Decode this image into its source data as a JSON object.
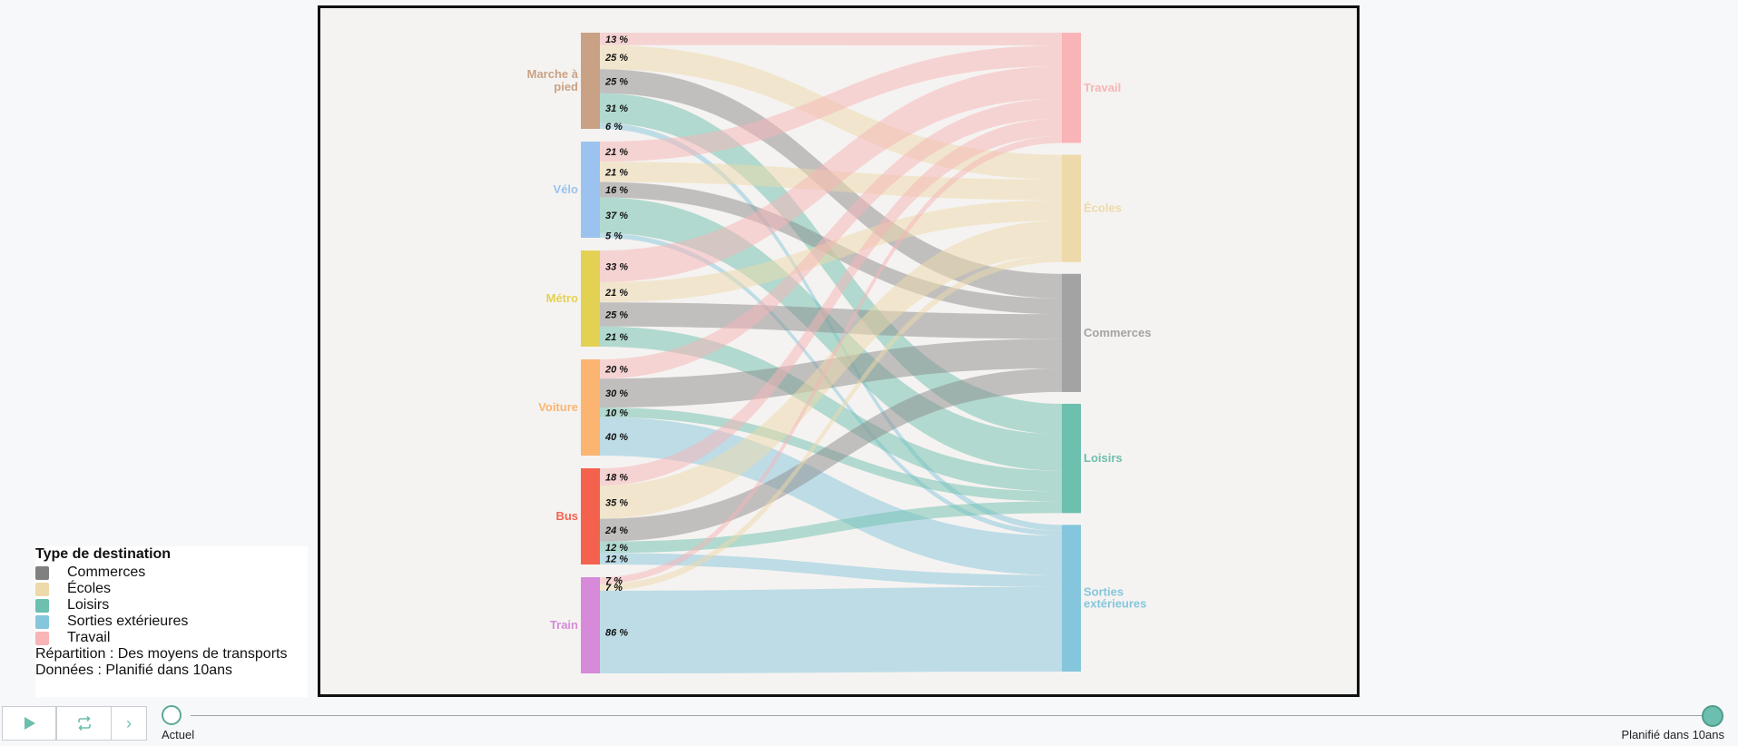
{
  "colors": {
    "Commerces": "#8c8c8c",
    "Écoles": "#edd9a9",
    "Loisirs": "#6dbfae",
    "Sorties extérieures": "#85c6dc",
    "Travail": "#f8b4b6"
  },
  "chart_data": {
    "type": "sankey",
    "sources": [
      {
        "name": "Marche à pied",
        "label_lines": [
          "Marche à",
          "pied"
        ],
        "color": "#c9a285"
      },
      {
        "name": "Vélo",
        "label_lines": [
          "Vélo"
        ],
        "color": "#9cc3ef"
      },
      {
        "name": "Métro",
        "label_lines": [
          "Métro"
        ],
        "color": "#e3d154"
      },
      {
        "name": "Voiture",
        "label_lines": [
          "Voiture"
        ],
        "color": "#fbb570"
      },
      {
        "name": "Bus",
        "label_lines": [
          "Bus"
        ],
        "color": "#f4624e"
      },
      {
        "name": "Train",
        "label_lines": [
          "Train"
        ],
        "color": "#d68ad9"
      }
    ],
    "targets": [
      {
        "name": "Travail",
        "label_lines": [
          "Travail"
        ],
        "color": "#f8b4b6"
      },
      {
        "name": "Écoles",
        "label_lines": [
          "Écoles"
        ],
        "color": "#edd9a9"
      },
      {
        "name": "Commerces",
        "label_lines": [
          "Commerces"
        ],
        "color": "#a3a3a3"
      },
      {
        "name": "Loisirs",
        "label_lines": [
          "Loisirs"
        ],
        "color": "#6dbfae"
      },
      {
        "name": "Sorties extérieures",
        "label_lines": [
          "Sorties",
          "extérieures"
        ],
        "color": "#85c6dc"
      }
    ],
    "flows": [
      {
        "source": "Marche à pied",
        "target": "Travail",
        "value": 13,
        "label": "13 %"
      },
      {
        "source": "Marche à pied",
        "target": "Écoles",
        "value": 25,
        "label": "25 %"
      },
      {
        "source": "Marche à pied",
        "target": "Commerces",
        "value": 25,
        "label": "25 %"
      },
      {
        "source": "Marche à pied",
        "target": "Loisirs",
        "value": 31,
        "label": "31 %"
      },
      {
        "source": "Marche à pied",
        "target": "Sorties extérieures",
        "value": 6,
        "label": "6 %"
      },
      {
        "source": "Vélo",
        "target": "Travail",
        "value": 21,
        "label": "21 %"
      },
      {
        "source": "Vélo",
        "target": "Écoles",
        "value": 21,
        "label": "21 %"
      },
      {
        "source": "Vélo",
        "target": "Commerces",
        "value": 16,
        "label": "16 %"
      },
      {
        "source": "Vélo",
        "target": "Loisirs",
        "value": 37,
        "label": "37 %"
      },
      {
        "source": "Vélo",
        "target": "Sorties extérieures",
        "value": 5,
        "label": "5 %"
      },
      {
        "source": "Métro",
        "target": "Travail",
        "value": 33,
        "label": "33 %"
      },
      {
        "source": "Métro",
        "target": "Écoles",
        "value": 21,
        "label": "21 %"
      },
      {
        "source": "Métro",
        "target": "Commerces",
        "value": 25,
        "label": "25 %"
      },
      {
        "source": "Métro",
        "target": "Loisirs",
        "value": 21,
        "label": "21 %"
      },
      {
        "source": "Voiture",
        "target": "Travail",
        "value": 20,
        "label": "20 %"
      },
      {
        "source": "Voiture",
        "target": "Commerces",
        "value": 30,
        "label": "30 %"
      },
      {
        "source": "Voiture",
        "target": "Loisirs",
        "value": 10,
        "label": "10 %"
      },
      {
        "source": "Voiture",
        "target": "Sorties extérieures",
        "value": 40,
        "label": "40 %"
      },
      {
        "source": "Bus",
        "target": "Travail",
        "value": 18,
        "label": "18 %"
      },
      {
        "source": "Bus",
        "target": "Écoles",
        "value": 35,
        "label": "35 %"
      },
      {
        "source": "Bus",
        "target": "Commerces",
        "value": 24,
        "label": "24 %"
      },
      {
        "source": "Bus",
        "target": "Loisirs",
        "value": 12,
        "label": "12 %"
      },
      {
        "source": "Bus",
        "target": "Sorties extérieures",
        "value": 12,
        "label": "12 %"
      },
      {
        "source": "Train",
        "target": "Travail",
        "value": 7,
        "label": "7 %"
      },
      {
        "source": "Train",
        "target": "Écoles",
        "value": 7,
        "label": "7 %"
      },
      {
        "source": "Train",
        "target": "Sorties extérieures",
        "value": 86,
        "label": "86 %"
      }
    ]
  },
  "legend": {
    "title": "Type de destination",
    "items": [
      {
        "label": "Commerces",
        "color": "#808080"
      },
      {
        "label": "Écoles",
        "color": "#edd9a9"
      },
      {
        "label": "Loisirs",
        "color": "#6dbfae"
      },
      {
        "label": "Sorties extérieures",
        "color": "#85c6dc"
      },
      {
        "label": "Travail",
        "color": "#f8b4b6"
      }
    ],
    "repartition": "Répartition : Des moyens de transports",
    "donnees": "Données : Planifié dans 10ans"
  },
  "timeline": {
    "start_label": "Actuel",
    "end_label": "Planifié dans 10ans",
    "play_icon": "play-icon",
    "loop_icon": "repeat-icon",
    "next_icon": "chevron-right-icon",
    "next_glyph": "›"
  }
}
